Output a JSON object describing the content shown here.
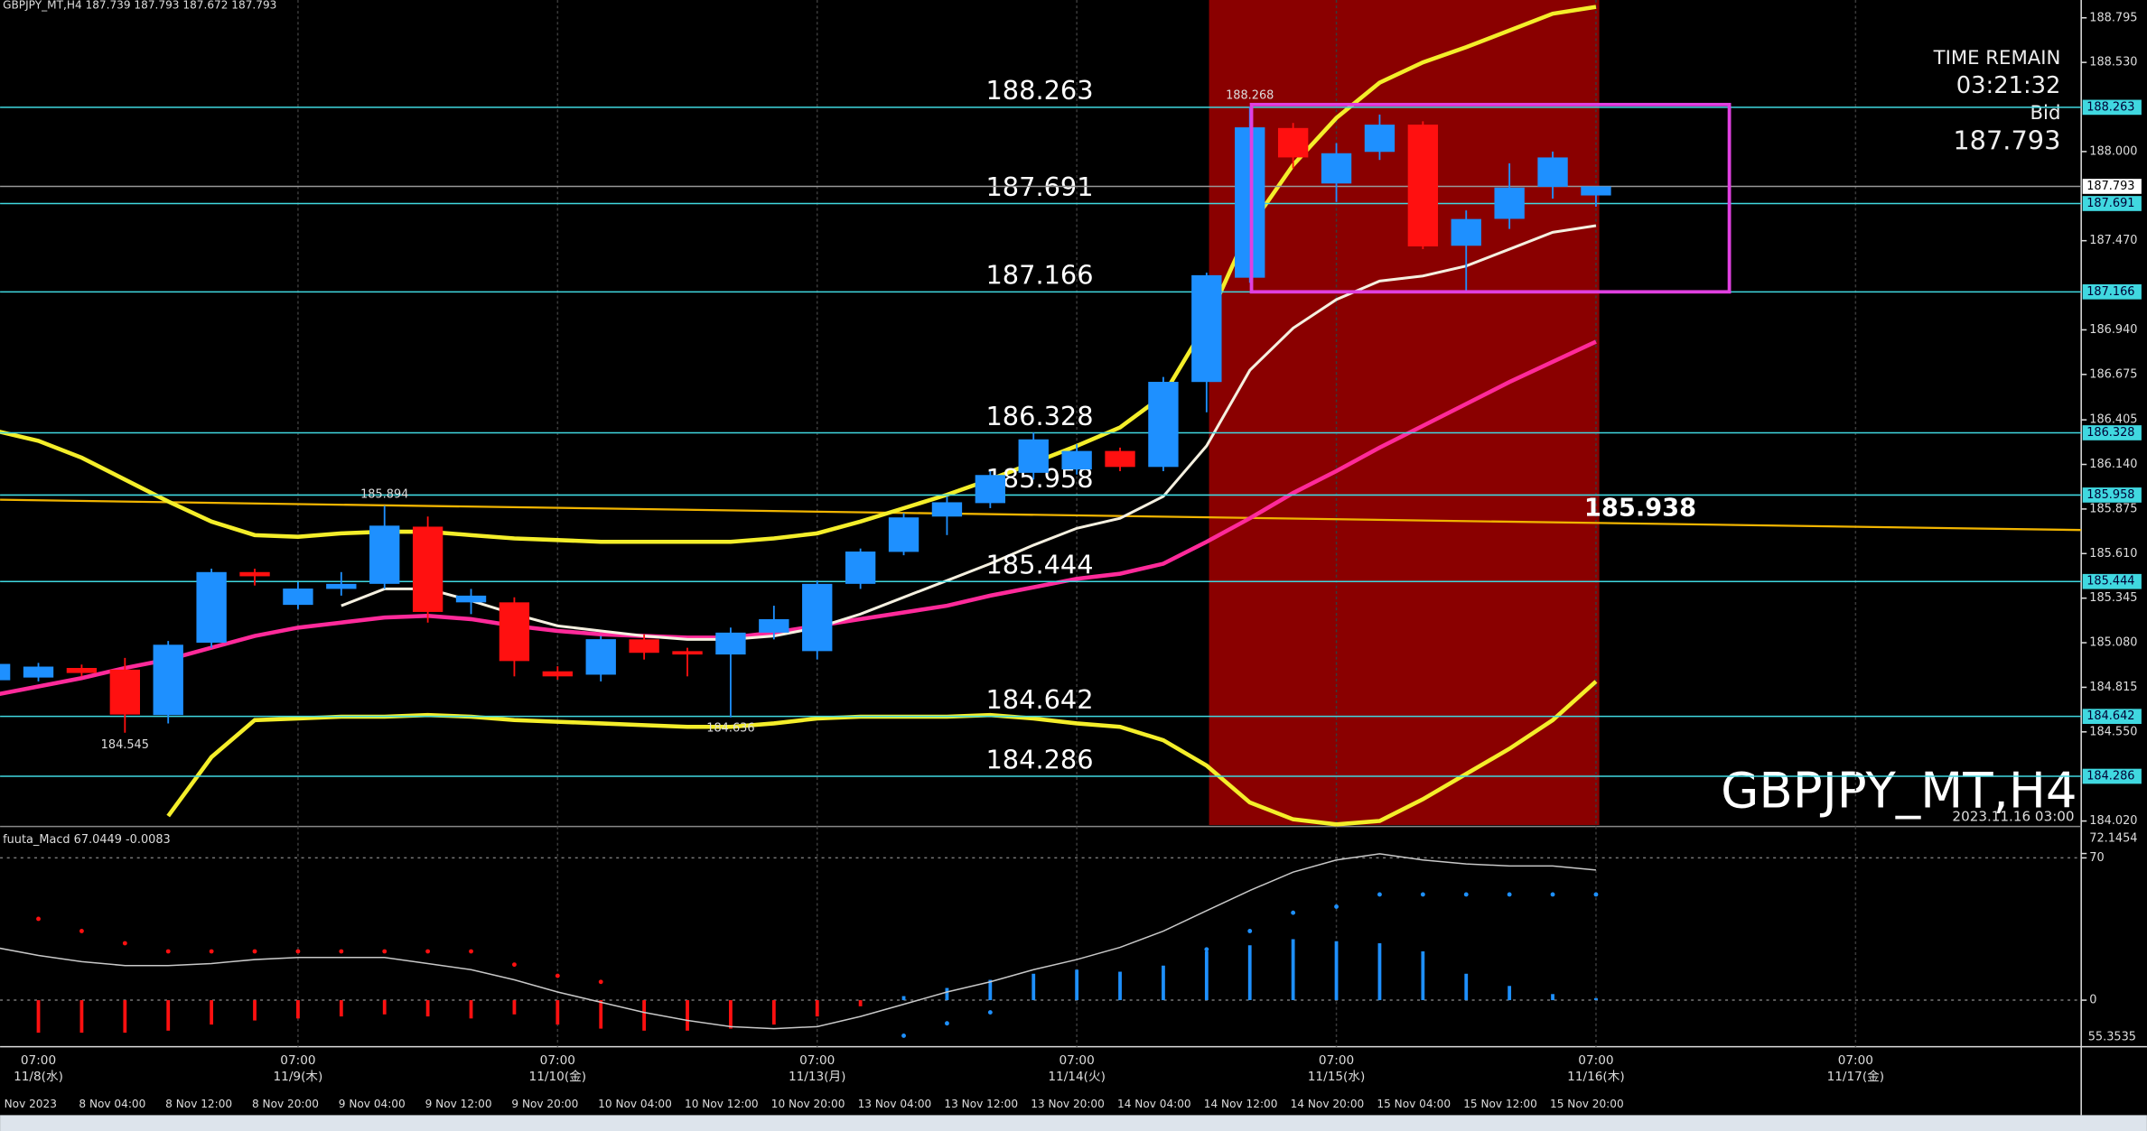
{
  "chart_data": {
    "type": "candlestick",
    "title": "GBPJPY_MT,H4 187.739 187.793 187.672 187.793",
    "watermark": "GBPJPY_MT,H4",
    "watermark_time": "2023.11.16 03:00",
    "info": {
      "time_remain_label": "TIME REMAIN",
      "time_remain": "03:21:32",
      "bid_label": "Bid",
      "bid": "187.793"
    },
    "categories": [
      "Nov 2023",
      null,
      "8 Nov 04:00",
      null,
      "8 Nov 12:00",
      null,
      "8 Nov 20:00",
      null,
      "9 Nov 04:00",
      null,
      "9 Nov 12:00",
      null,
      "9 Nov 20:00",
      null,
      "10 Nov 04:00",
      null,
      "10 Nov 12:00",
      null,
      "10 Nov 20:00",
      null,
      "13 Nov 04:00",
      null,
      "13 Nov 12:00",
      null,
      "13 Nov 20:00",
      null,
      "14 Nov 04:00",
      null,
      "14 Nov 12:00",
      null,
      "14 Nov 20:00",
      null,
      "15 Nov 04:00",
      null,
      "15 Nov 12:00",
      null,
      "15 Nov 20:00",
      null
    ],
    "jst_axis": [
      {
        "time": "07:00",
        "date": "11/8(水)"
      },
      {
        "time": "07:00",
        "date": "11/9(木)"
      },
      {
        "time": "07:00",
        "date": "11/10(金)"
      },
      {
        "time": "07:00",
        "date": "11/13(月)"
      },
      {
        "time": "07:00",
        "date": "11/14(火)"
      },
      {
        "time": "07:00",
        "date": "11/15(水)"
      },
      {
        "time": "07:00",
        "date": "11/16(木)"
      },
      {
        "time": "07:00",
        "date": "11/17(金)"
      }
    ],
    "open": [
      184.857,
      184.873,
      184.93,
      184.92,
      184.65,
      185.08,
      185.5,
      185.305,
      185.4,
      185.43,
      185.77,
      185.32,
      185.32,
      184.91,
      184.89,
      185.1,
      185.03,
      185.01,
      185.14,
      185.03,
      185.43,
      185.62,
      185.83,
      185.91,
      186.09,
      186.11,
      186.22,
      186.125,
      186.63,
      187.25,
      188.14,
      187.81,
      187.998,
      188.16,
      187.44,
      187.6,
      187.79,
      187.739
    ],
    "high": [
      184.97,
      184.96,
      184.95,
      184.99,
      185.09,
      185.52,
      185.52,
      185.44,
      185.5,
      185.894,
      185.83,
      185.4,
      185.35,
      184.94,
      185.12,
      185.13,
      185.05,
      185.17,
      185.3,
      185.45,
      185.64,
      185.85,
      185.95,
      186.1,
      186.33,
      186.26,
      186.24,
      186.66,
      187.28,
      188.268,
      188.17,
      188.05,
      188.22,
      188.18,
      187.65,
      187.93,
      188.0,
      187.793
    ],
    "low": [
      184.8,
      184.85,
      184.88,
      184.545,
      184.6,
      185.05,
      185.42,
      185.28,
      185.36,
      185.4,
      185.2,
      185.25,
      184.88,
      184.86,
      184.85,
      184.98,
      184.88,
      184.636,
      185.1,
      184.98,
      185.4,
      185.6,
      185.72,
      185.88,
      186.05,
      186.08,
      186.1,
      186.1,
      186.45,
      187.22,
      187.9,
      187.7,
      187.95,
      187.42,
      187.176,
      187.54,
      187.72,
      187.672
    ],
    "close": [
      184.954,
      184.938,
      184.9,
      184.653,
      185.068,
      185.5,
      185.475,
      185.402,
      185.43,
      185.776,
      185.263,
      185.36,
      184.971,
      184.88,
      185.101,
      185.02,
      185.01,
      185.14,
      185.22,
      185.43,
      185.622,
      185.825,
      185.915,
      186.077,
      186.289,
      186.22,
      186.125,
      186.631,
      187.265,
      188.144,
      187.965,
      187.99,
      188.16,
      187.436,
      187.599,
      187.786,
      187.965,
      187.793
    ],
    "up_color": "#1e90ff",
    "down_color": "#ff1010",
    "ylim": [
      183.996,
      188.901
    ],
    "yticks": [
      {
        "value": 188.795,
        "label": "188.795"
      },
      {
        "value": 188.53,
        "label": "188.530"
      },
      {
        "value": 188.0,
        "label": "188.000"
      },
      {
        "value": 187.47,
        "label": "187.470"
      },
      {
        "value": 186.94,
        "label": "186.940"
      },
      {
        "value": 186.675,
        "label": "186.675"
      },
      {
        "value": 186.405,
        "label": "186.405"
      },
      {
        "value": 186.14,
        "label": "186.140"
      },
      {
        "value": 185.875,
        "label": "185.875"
      },
      {
        "value": 185.61,
        "label": "185.610"
      },
      {
        "value": 185.345,
        "label": "185.345"
      },
      {
        "value": 185.08,
        "label": "185.080"
      },
      {
        "value": 184.815,
        "label": "184.815"
      },
      {
        "value": 184.55,
        "label": "184.550"
      },
      {
        "value": 184.02,
        "label": "184.020"
      }
    ],
    "levels": [
      {
        "value": 188.263,
        "label": "188.263"
      },
      {
        "value": 187.691,
        "label": "187.691"
      },
      {
        "value": 187.166,
        "label": "187.166"
      },
      {
        "value": 186.328,
        "label": "186.328"
      },
      {
        "value": 185.958,
        "label": "185.958"
      },
      {
        "value": 185.444,
        "label": "185.444"
      },
      {
        "value": 184.642,
        "label": "184.642"
      },
      {
        "value": 184.286,
        "label": "184.286"
      }
    ],
    "level_color": "#40d8e0",
    "bid_line": {
      "value": 187.793,
      "label": "187.793"
    },
    "trend_line": {
      "label": "185.938",
      "values": [
        185.93,
        185.75
      ],
      "color": "#f0b400"
    },
    "annotations": [
      {
        "value": 188.268,
        "label": "188.268"
      },
      {
        "value": 185.894,
        "label": "185.894"
      },
      {
        "value": 184.545,
        "label": "184.545"
      },
      {
        "value": 184.636,
        "label": "184.636"
      }
    ],
    "lines": [
      {
        "color": "#f4ee2a",
        "width": 3,
        "values": [
          186.34,
          186.28,
          186.18,
          186.05,
          185.92,
          185.8,
          185.72,
          185.71,
          185.73,
          185.74,
          185.74,
          185.72,
          185.7,
          185.69,
          185.68,
          185.68,
          185.68,
          185.68,
          185.7,
          185.73,
          185.8,
          185.88,
          185.96,
          186.05,
          186.15,
          186.25,
          186.36,
          186.55,
          186.98,
          187.55,
          187.92,
          188.2,
          188.41,
          188.53,
          188.62,
          188.72,
          188.82,
          188.86
        ]
      },
      {
        "color": "#f4ee2a",
        "width": 3,
        "values": [
          null,
          null,
          null,
          null,
          184.05,
          184.4,
          184.62,
          184.63,
          184.64,
          184.64,
          184.65,
          184.64,
          184.62,
          184.61,
          184.6,
          184.59,
          184.58,
          184.58,
          184.6,
          184.63,
          184.64,
          184.64,
          184.64,
          184.65,
          184.63,
          184.6,
          184.58,
          184.5,
          184.35,
          184.13,
          184.03,
          184.0,
          184.02,
          184.15,
          184.3,
          184.45,
          184.62,
          184.85
        ]
      },
      {
        "color": "#ff2a9a",
        "width": 3,
        "values": [
          184.77,
          184.82,
          184.87,
          184.93,
          184.98,
          185.05,
          185.12,
          185.17,
          185.2,
          185.23,
          185.24,
          185.22,
          185.18,
          185.15,
          185.13,
          185.12,
          185.11,
          185.11,
          185.14,
          185.18,
          185.22,
          185.26,
          185.3,
          185.36,
          185.41,
          185.46,
          185.49,
          185.55,
          185.68,
          185.82,
          185.97,
          186.1,
          186.24,
          186.37,
          186.5,
          186.63,
          186.75,
          186.87
        ]
      },
      {
        "color": "#f5f0e0",
        "width": 2,
        "values": [
          null,
          null,
          null,
          null,
          null,
          null,
          null,
          null,
          185.3,
          185.4,
          185.4,
          185.33,
          185.25,
          185.18,
          185.15,
          185.12,
          185.1,
          185.1,
          185.12,
          185.17,
          185.25,
          185.35,
          185.45,
          185.55,
          185.66,
          185.76,
          185.82,
          185.95,
          186.25,
          186.7,
          186.95,
          187.12,
          187.23,
          187.26,
          187.32,
          187.42,
          187.52,
          187.56
        ]
      }
    ],
    "macd": {
      "title": "fuuta_Macd 67.0449 -0.0083",
      "ylim": [
        -22.9,
        84.8
      ],
      "yticks": [
        72.1454,
        70,
        0
      ],
      "min_label": "55.3535",
      "histogram": [
        null,
        -16,
        -16,
        -16,
        -15,
        -12,
        -10,
        -9,
        -8,
        -7,
        -8,
        -9,
        -7,
        -12,
        -14,
        -15,
        -15,
        -14,
        -12,
        -8,
        -3,
        2,
        6,
        10,
        13,
        15,
        14,
        17,
        24,
        27,
        30,
        29,
        28,
        24,
        13,
        7,
        3,
        1
      ],
      "up_color": "#1e90ff",
      "down_color": "#ff1010",
      "line": {
        "color": "#c8c8c8",
        "values": [
          26,
          22,
          19,
          17,
          17,
          18,
          20,
          21,
          21,
          21,
          18,
          15,
          10,
          4,
          -1,
          -6,
          -10,
          -13,
          -14,
          -13,
          -8,
          -2,
          4,
          9,
          15,
          20,
          26,
          34,
          44,
          54,
          63,
          69,
          72,
          69,
          67,
          66,
          66,
          64
        ]
      },
      "signal_up": {
        "color": "#ff1010",
        "values": [
          null,
          40,
          34,
          28,
          24,
          24,
          24,
          24,
          24,
          24,
          24,
          24,
          17.5,
          12,
          9,
          null,
          null,
          null,
          null,
          null,
          null,
          null,
          null,
          null,
          null,
          null,
          null,
          null,
          null,
          null,
          null,
          null,
          null,
          null,
          null,
          null,
          null,
          null
        ]
      },
      "signal_down": {
        "color": "#1e90ff",
        "values": [
          null,
          null,
          null,
          null,
          null,
          null,
          null,
          null,
          null,
          null,
          null,
          null,
          null,
          null,
          null,
          null,
          null,
          null,
          null,
          null,
          null,
          -17.5,
          -11.4,
          -6,
          null,
          null,
          null,
          null,
          25,
          34,
          43,
          46,
          52,
          52,
          52,
          52,
          52,
          52
        ]
      }
    }
  }
}
